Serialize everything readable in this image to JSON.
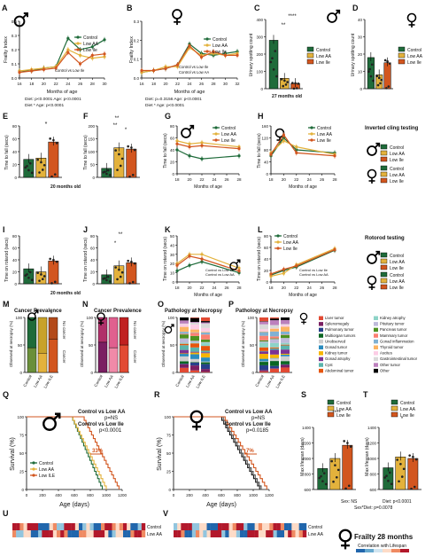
{
  "colors": {
    "control": "#1f6b3a",
    "low_aa": "#e3b23c",
    "low_ile": "#d2561f",
    "male_bar": "#2a2a2a",
    "hm_red": "#8b1a1a",
    "hm_blue": "#2f6fb3"
  },
  "panels": {
    "A": {
      "letter": "A",
      "ylabel": "Frailty Index",
      "xlabel": "Months of age",
      "ticks": [
        "16",
        "18",
        "20",
        "22",
        "24",
        "26",
        "28",
        "30"
      ],
      "yticks": [
        "0.0",
        "0.1",
        "0.2",
        "0.3",
        "0.4"
      ],
      "legend": [
        "Control",
        "Low AA",
        "Low Ile"
      ],
      "note": "Control vs Low Ile",
      "stat1": "Diet: p<0.0001   Age: p<0.0001",
      "stat2": "Diet * Age: p<0.0001"
    },
    "B": {
      "letter": "B",
      "ylabel": "Frailty Index",
      "xlabel": "Months of age",
      "ticks": [
        "16",
        "18",
        "20",
        "22",
        "24",
        "26",
        "28",
        "30",
        "32"
      ],
      "yticks": [
        "0.0",
        "0.1",
        "0.2",
        "0.3"
      ],
      "legend": [
        "Control",
        "Low AA",
        "Low Ile"
      ],
      "note1": "Control vs Low Ile",
      "note2": "Control vs Low AA",
      "stat1": "Diet: p=0.3156   Age: p<0.0001",
      "stat2": "Diet * Age: p<0.0001"
    },
    "C": {
      "letter": "C",
      "ylabel": "Urinary spotting count",
      "yticks": [
        "0",
        "100",
        "200",
        "300",
        "400"
      ],
      "legend": [
        "Control",
        "Low AA",
        "Low Ile"
      ],
      "stars1": "****",
      "stars2": "**",
      "caption": "27 months old",
      "values": [
        280,
        60,
        30
      ]
    },
    "D": {
      "letter": "D",
      "ylabel": "Urinary spotting count",
      "yticks": [
        "0",
        "10",
        "20",
        "30",
        "40"
      ],
      "legend": [
        "Control",
        "Low AA",
        "Low Ile"
      ],
      "values": [
        18,
        8,
        15
      ]
    },
    "E": {
      "letter": "E",
      "ylabel": "Time to fall (secs)",
      "yticks": [
        "0",
        "20",
        "40",
        "60",
        "80"
      ],
      "stars": "*",
      "caption": "20 months old",
      "values": [
        28,
        30,
        55
      ]
    },
    "F": {
      "letter": "F",
      "ylabel": "Time to fall (secs)",
      "yticks": [
        "0",
        "50",
        "100",
        "150",
        "200"
      ],
      "stars": [
        "**",
        "**",
        "*"
      ],
      "values": [
        35,
        115,
        110
      ]
    },
    "G": {
      "letter": "G",
      "ylabel": "Time to fall (secs)",
      "xlabel": "Months of age",
      "ticks": [
        "18",
        "20",
        "22",
        "24",
        "26",
        "28"
      ],
      "yticks": [
        "0",
        "20",
        "40",
        "60",
        "80"
      ],
      "legend": [
        "Control",
        "Low AA",
        "Low Ile"
      ]
    },
    "H": {
      "letter": "H",
      "ylabel": "Time to fall (secs)",
      "xlabel": "Months of age",
      "ticks": [
        "18",
        "20",
        "22",
        "24",
        "26",
        "28"
      ],
      "yticks": [
        "0",
        "40",
        "80",
        "120",
        "160"
      ],
      "legend": [
        "Control",
        "Low AA",
        "Low Ile"
      ]
    },
    "I": {
      "letter": "I",
      "ylabel": "Time on rotarod (secs)",
      "yticks": [
        "0",
        "20",
        "40",
        "60",
        "80"
      ],
      "caption": "20 months old",
      "values": [
        25,
        20,
        38
      ]
    },
    "J": {
      "letter": "J",
      "ylabel": "Time on rotarod (secs)",
      "yticks": [
        "0",
        "20",
        "40",
        "60",
        "80"
      ],
      "stars": [
        "**",
        "*"
      ],
      "values": [
        15,
        30,
        35
      ]
    },
    "K": {
      "letter": "K",
      "ylabel": "Time on rotarod (secs)",
      "xlabel": "Months of age",
      "ticks": [
        "18",
        "20",
        "22",
        "24",
        "26",
        "28"
      ],
      "yticks": [
        "0",
        "10",
        "20",
        "30",
        "40",
        "50"
      ],
      "legend": [
        "Control",
        "Low AA",
        "Low Ile"
      ],
      "note1": "Control vs Low Ile",
      "note2": "Control vs Low AA"
    },
    "L": {
      "letter": "L",
      "ylabel": "Time on rotarod (secs)",
      "xlabel": "Months of age",
      "ticks": [
        "18",
        "20",
        "22",
        "24",
        "26",
        "28"
      ],
      "yticks": [
        "0",
        "20",
        "40",
        "60",
        "80"
      ],
      "legend": [
        "Control",
        "Low AA",
        "Low Ile"
      ],
      "note1": "Control vs Low Ile",
      "note2": "Control vs Low AA"
    },
    "M": {
      "letter": "M",
      "title": "Cancer Prevalence",
      "ylabel": "Observed at necropsy (%)",
      "cats": [
        "Control",
        "Low AA",
        "Low ILE"
      ],
      "legend": [
        "No cancer",
        "Cancer"
      ],
      "stars": "*"
    },
    "N": {
      "letter": "N",
      "title": "Cancer Prevalence",
      "ylabel": "Observed at necropsy (%)",
      "cats": [
        "Control",
        "Low AA",
        "Low ILE"
      ],
      "legend": [
        "No cancer",
        "Cancer"
      ]
    },
    "O": {
      "letter": "O",
      "title": "Pathology at Necropsy",
      "ylabel": "Observed at necropsy (%)",
      "cats": [
        "Control",
        "Low AA",
        "Low ILE"
      ]
    },
    "P": {
      "letter": "P",
      "title": "Pathology at Necropsy",
      "ylabel": "Observed at necropsy (%)",
      "cats": [
        "Control",
        "Low AA",
        "Low ILE"
      ]
    },
    "Q": {
      "letter": "Q",
      "ylabel": "Survival (%)",
      "xlabel": "Age (days)",
      "ticks": [
        "0",
        "200",
        "400",
        "600",
        "800",
        "1000",
        "1200"
      ],
      "yticks": [
        "0",
        "25",
        "50",
        "75",
        "100"
      ],
      "legend": [
        "Control",
        "Low AA",
        "Low ILE"
      ],
      "stat1": "Control vs Low AA",
      "stat2": "p=NS",
      "stat3": "Control vs Low Ile",
      "stat4": "p<0.0001",
      "pct": "33%"
    },
    "R": {
      "letter": "R",
      "ylabel": "Survival (%)",
      "xlabel": "Age (days)",
      "ticks": [
        "0",
        "200",
        "400",
        "600",
        "800",
        "1000",
        "1200"
      ],
      "yticks": [
        "0",
        "25",
        "50",
        "75",
        "100"
      ],
      "stat1": "Control vs Low AA",
      "stat2": "p=NS",
      "stat3": "Control vs Low Ile",
      "stat4": "p=0.0185",
      "pct": "7%"
    },
    "S": {
      "letter": "S",
      "ylabel": "Max lifespan (days)",
      "yticks": [
        "600",
        "800",
        "1000",
        "1200",
        "1400"
      ],
      "stars": "****",
      "legend": [
        "Control",
        "Low AA",
        "Low Ile"
      ],
      "values": [
        870,
        1000,
        1170
      ]
    },
    "T": {
      "letter": "T",
      "ylabel": "Max lifespan (days)",
      "yticks": [
        "600",
        "800",
        "1000",
        "1200",
        "1400"
      ],
      "stars": "*",
      "legend": [
        "Control",
        "Low AA",
        "Low Ile"
      ],
      "values": [
        880,
        1020,
        1000
      ]
    },
    "U": {
      "letter": "U",
      "labels": [
        "Control",
        "Low AA"
      ]
    },
    "V": {
      "letter": "V",
      "labels": [
        "Control",
        "Low AA"
      ]
    }
  },
  "side_labels": {
    "cling": "Inverted cling testing",
    "rotarod": "Rotorod testing"
  },
  "pathology_legend": [
    "Liver tumor",
    "Splenomegaly",
    "Pulmonary tumor",
    "Multiorgan tumors",
    "Unobserved",
    "Gonad tumor",
    "Kidney tumor",
    "Gonad atrophy",
    "Cyst",
    "Abdominal tumor",
    "Kidney atrophy",
    "Pituitary tumor",
    "Pancreas tumor",
    "Mammary tumor",
    "Gonad inflammation",
    "Thyroid tumor",
    "Ascites",
    "Gastrointestinal tumor",
    "Other tumor",
    "Other"
  ],
  "pathology_colors": [
    "#e24a33",
    "#7a1f62",
    "#27408b",
    "#0b6623",
    "#cfcfcf",
    "#2b8cbe",
    "#f7b500",
    "#7b3294",
    "#5ab4ac",
    "#e6550d",
    "#8dd3c7",
    "#bebada",
    "#4d9221",
    "#fb8072",
    "#80b1d3",
    "#fdb462",
    "#fccde5",
    "#d9d9d9",
    "#bc80bd",
    "#000000"
  ],
  "stats_bottom": {
    "sex": "Sex: NS",
    "diet": "Diet: p<0.0001",
    "sexdiet": "Sex*Diet: p=0.0078"
  },
  "frailty": {
    "title": "Frailty 28 months",
    "subtitle": "Correlation with Lifespan"
  }
}
